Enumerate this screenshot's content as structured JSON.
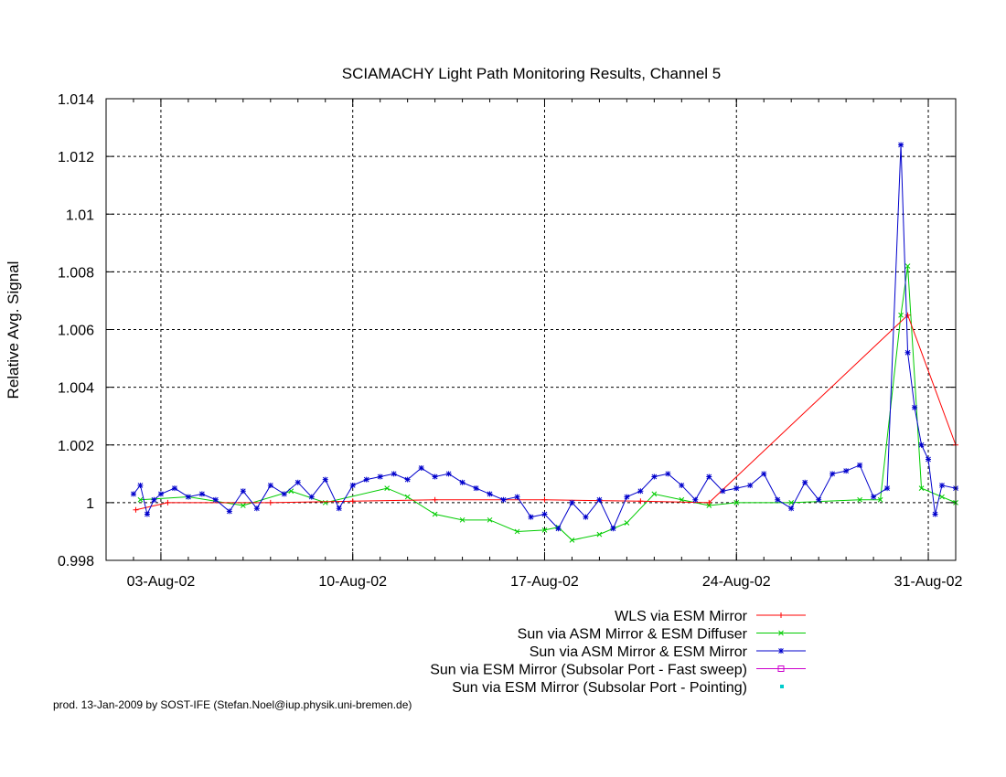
{
  "chart_data": {
    "type": "line",
    "title": "SCIAMACHY Light Path Monitoring Results, Channel 5",
    "xlabel": "",
    "ylabel": "Relative Avg. Signal",
    "xlim": [
      "2002-08-01",
      "2002-09-01"
    ],
    "ylim": [
      0.998,
      1.014
    ],
    "x_ticks": [
      {
        "date": "2002-08-03",
        "label": "03-Aug-02"
      },
      {
        "date": "2002-08-10",
        "label": "10-Aug-02"
      },
      {
        "date": "2002-08-17",
        "label": "17-Aug-02"
      },
      {
        "date": "2002-08-24",
        "label": "24-Aug-02"
      },
      {
        "date": "2002-08-31",
        "label": "31-Aug-02"
      }
    ],
    "y_ticks": [
      {
        "value": 0.998,
        "label": "0.998"
      },
      {
        "value": 1.0,
        "label": "1"
      },
      {
        "value": 1.002,
        "label": "1.002"
      },
      {
        "value": 1.004,
        "label": "1.004"
      },
      {
        "value": 1.006,
        "label": "1.006"
      },
      {
        "value": 1.008,
        "label": "1.008"
      },
      {
        "value": 1.01,
        "label": "1.01"
      },
      {
        "value": 1.012,
        "label": "1.012"
      },
      {
        "value": 1.014,
        "label": "1.014"
      }
    ],
    "grid": true,
    "legend_position": "bottom-right, below plot",
    "series": [
      {
        "name": "WLS via ESM Mirror",
        "color": "#ff0000",
        "marker": "plus",
        "x": [
          "2002-08-02 02:00",
          "2002-08-03 06:00",
          "2002-08-07 00:00",
          "2002-08-10 00:00",
          "2002-08-13 00:00",
          "2002-08-17 00:00",
          "2002-08-20 12:00",
          "2002-08-23 00:00",
          "2002-08-30 06:00",
          "2002-09-01 00:00"
        ],
        "y": [
          0.99975,
          1.0,
          1.0,
          1.00005,
          1.0001,
          1.0001,
          1.00005,
          1.0,
          1.0065,
          1.002
        ]
      },
      {
        "name": "Sun via ASM Mirror & ESM Diffuser",
        "color": "#00cc00",
        "marker": "x",
        "x": [
          "2002-08-02 06:00",
          "2002-08-04 00:00",
          "2002-08-06 00:00",
          "2002-08-07 18:00",
          "2002-08-09 00:00",
          "2002-08-11 06:00",
          "2002-08-12 00:00",
          "2002-08-13 00:00",
          "2002-08-14 00:00",
          "2002-08-15 00:00",
          "2002-08-16 00:00",
          "2002-08-17 00:00",
          "2002-08-17 12:00",
          "2002-08-18 00:00",
          "2002-08-19 00:00",
          "2002-08-20 00:00",
          "2002-08-21 00:00",
          "2002-08-22 00:00",
          "2002-08-23 00:00",
          "2002-08-24 00:00",
          "2002-08-26 00:00",
          "2002-08-28 12:00",
          "2002-08-29 06:00",
          "2002-08-30 00:00",
          "2002-08-30 06:00",
          "2002-08-30 18:00",
          "2002-08-31 12:00",
          "2002-09-01 00:00"
        ],
        "y": [
          1.0001,
          1.0002,
          0.9999,
          1.0004,
          1.0,
          1.0005,
          1.0002,
          0.9996,
          0.9994,
          0.9994,
          0.999,
          0.99905,
          0.99915,
          0.9987,
          0.9989,
          0.9993,
          1.0003,
          1.0001,
          0.9999,
          1.0,
          1.0,
          1.0001,
          1.0001,
          1.0065,
          1.0082,
          1.0005,
          1.0002,
          1.0
        ]
      },
      {
        "name": "Sun via ASM Mirror & ESM Mirror",
        "color": "#0000cc",
        "marker": "star",
        "x": [
          "2002-08-02 00:00",
          "2002-08-02 06:00",
          "2002-08-02 12:00",
          "2002-08-02 18:00",
          "2002-08-03 00:00",
          "2002-08-03 12:00",
          "2002-08-04 00:00",
          "2002-08-04 12:00",
          "2002-08-05 00:00",
          "2002-08-05 12:00",
          "2002-08-06 00:00",
          "2002-08-06 12:00",
          "2002-08-07 00:00",
          "2002-08-07 12:00",
          "2002-08-08 00:00",
          "2002-08-08 12:00",
          "2002-08-09 00:00",
          "2002-08-09 12:00",
          "2002-08-10 00:00",
          "2002-08-10 12:00",
          "2002-08-11 00:00",
          "2002-08-11 12:00",
          "2002-08-12 00:00",
          "2002-08-12 12:00",
          "2002-08-13 00:00",
          "2002-08-13 12:00",
          "2002-08-14 00:00",
          "2002-08-14 12:00",
          "2002-08-15 00:00",
          "2002-08-15 12:00",
          "2002-08-16 00:00",
          "2002-08-16 12:00",
          "2002-08-17 00:00",
          "2002-08-17 12:00",
          "2002-08-18 00:00",
          "2002-08-18 12:00",
          "2002-08-19 00:00",
          "2002-08-19 12:00",
          "2002-08-20 00:00",
          "2002-08-20 12:00",
          "2002-08-21 00:00",
          "2002-08-21 12:00",
          "2002-08-22 00:00",
          "2002-08-22 12:00",
          "2002-08-23 00:00",
          "2002-08-23 12:00",
          "2002-08-24 00:00",
          "2002-08-24 12:00",
          "2002-08-25 00:00",
          "2002-08-25 12:00",
          "2002-08-26 00:00",
          "2002-08-26 12:00",
          "2002-08-27 00:00",
          "2002-08-27 12:00",
          "2002-08-28 00:00",
          "2002-08-28 12:00",
          "2002-08-29 00:00",
          "2002-08-29 12:00",
          "2002-08-30 00:00",
          "2002-08-30 06:00",
          "2002-08-30 12:00",
          "2002-08-30 18:00",
          "2002-08-31 00:00",
          "2002-08-31 06:00",
          "2002-08-31 12:00",
          "2002-09-01 00:00"
        ],
        "y": [
          1.0003,
          1.0006,
          0.9996,
          1.0001,
          1.0003,
          1.0005,
          1.0002,
          1.0003,
          1.0001,
          0.9997,
          1.0004,
          0.9998,
          1.0006,
          1.0003,
          1.0007,
          1.0002,
          1.0008,
          0.9998,
          1.0006,
          1.0008,
          1.0009,
          1.001,
          1.0008,
          1.0012,
          1.0009,
          1.001,
          1.0007,
          1.0005,
          1.0003,
          1.0001,
          1.0002,
          0.9995,
          0.9996,
          0.9991,
          1.0,
          0.9995,
          1.0001,
          0.9991,
          1.0002,
          1.0004,
          1.0009,
          1.001,
          1.0006,
          1.0001,
          1.0009,
          1.0004,
          1.0005,
          1.0006,
          1.001,
          1.0001,
          0.9998,
          1.0007,
          1.0001,
          1.001,
          1.0011,
          1.0013,
          1.0002,
          1.0005,
          1.0124,
          1.0052,
          1.0033,
          1.002,
          1.0015,
          0.9996,
          1.0006,
          1.0005
        ]
      },
      {
        "name": "Sun via ESM Mirror (Subsolar Port - Fast sweep)",
        "color": "#cc00cc",
        "marker": "open-square",
        "x": [],
        "y": []
      },
      {
        "name": "Sun via ESM Mirror (Subsolar Port - Pointing)",
        "color": "#00cccc",
        "marker": "filled-square",
        "x": [],
        "y": []
      }
    ]
  },
  "footer": {
    "credit": "prod. 13-Jan-2009 by SOST-IFE (Stefan.Noel@iup.physik.uni-bremen.de)"
  }
}
